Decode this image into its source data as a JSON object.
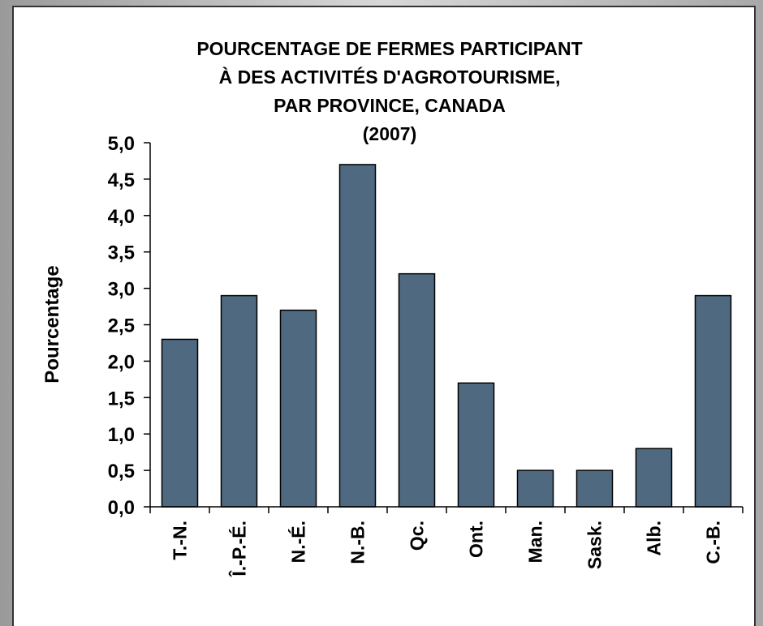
{
  "chart_data": {
    "type": "bar",
    "title": [
      "POURCENTAGE DE FERMES PARTICIPANT",
      "À DES ACTIVITÉS D'AGROTOURISME,",
      "PAR PROVINCE, CANADA",
      "(2007)"
    ],
    "y_label": "Pourcentage",
    "categories": [
      "T.-N.",
      "Î.-P.-É.",
      "N.-É.",
      "N.-B.",
      "Qc.",
      "Ont.",
      "Man.",
      "Sask.",
      "Alb.",
      "C.-B."
    ],
    "values": [
      2.3,
      2.9,
      2.7,
      4.7,
      3.2,
      1.7,
      0.5,
      0.5,
      0.8,
      2.9
    ],
    "color": "#4f6a80",
    "ylim": [
      0,
      5
    ],
    "yticks": [
      {
        "value": 0,
        "label": "0,0"
      },
      {
        "value": 0.5,
        "label": "0,5"
      },
      {
        "value": 1,
        "label": "1,0"
      },
      {
        "value": 1.5,
        "label": "1,5"
      },
      {
        "value": 2,
        "label": "2,0"
      },
      {
        "value": 2.5,
        "label": "2,5"
      },
      {
        "value": 3,
        "label": "3,0"
      },
      {
        "value": 3.5,
        "label": "3,5"
      },
      {
        "value": 4,
        "label": "4,0"
      },
      {
        "value": 4.5,
        "label": "4,5"
      },
      {
        "value": 5,
        "label": "5,0"
      }
    ]
  }
}
